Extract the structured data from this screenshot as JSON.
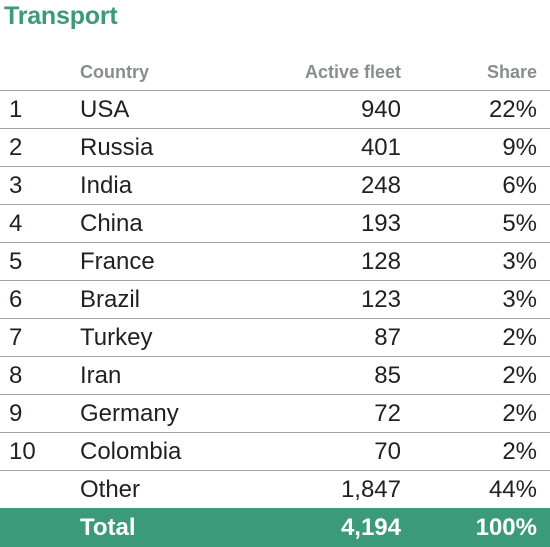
{
  "title": "Transport",
  "columns": {
    "country": "Country",
    "fleet": "Active fleet",
    "share": "Share"
  },
  "rows": [
    {
      "rank": "1",
      "country": "USA",
      "fleet": "940",
      "share": "22%"
    },
    {
      "rank": "2",
      "country": "Russia",
      "fleet": "401",
      "share": "9%"
    },
    {
      "rank": "3",
      "country": "India",
      "fleet": "248",
      "share": "6%"
    },
    {
      "rank": "4",
      "country": "China",
      "fleet": "193",
      "share": "5%"
    },
    {
      "rank": "5",
      "country": "France",
      "fleet": "128",
      "share": "3%"
    },
    {
      "rank": "6",
      "country": "Brazil",
      "fleet": "123",
      "share": "3%"
    },
    {
      "rank": "7",
      "country": "Turkey",
      "fleet": "87",
      "share": "2%"
    },
    {
      "rank": "8",
      "country": "Iran",
      "fleet": "85",
      "share": "2%"
    },
    {
      "rank": "9",
      "country": "Germany",
      "fleet": "72",
      "share": "2%"
    },
    {
      "rank": "10",
      "country": "Colombia",
      "fleet": "70",
      "share": "2%"
    }
  ],
  "other": {
    "country": "Other",
    "fleet": "1,847",
    "share": "44%"
  },
  "total": {
    "country": "Total",
    "fleet": "4,194",
    "share": "100%"
  },
  "colors": {
    "accent": "#3a9a7a",
    "header_text": "#8a8c8e",
    "rule": "#9d9fa2"
  }
}
